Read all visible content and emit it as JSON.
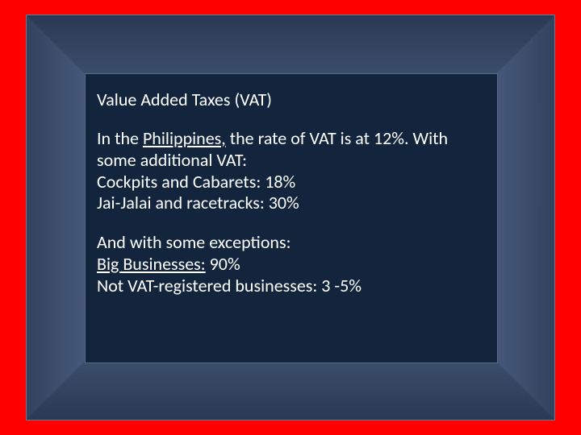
{
  "slide": {
    "background_color": "#ff0000",
    "frame": {
      "outer_border_color": "#6a7a95",
      "bevel_colors": {
        "top_gradient": [
          "#2a3a55",
          "#3a4d6a"
        ],
        "bottom_gradient": [
          "#3a4d6a",
          "#2a3a55"
        ],
        "left_gradient": [
          "#32435e",
          "#46587a"
        ],
        "right_gradient": [
          "#32435e",
          "#46587a"
        ]
      },
      "content_bg": "#12253d",
      "content_border": "#5a6a85"
    },
    "text_color": "#ffffff",
    "font_size_pt": 16,
    "title": "Value Added Taxes (VAT)",
    "body": {
      "line1_prefix": "In the ",
      "line1_underlined": "Philippines,",
      "line1_suffix": " the rate of VAT is at 12%. With some additional VAT:",
      "line2": "Cockpits and Cabarets: 18%",
      "line3": "Jai-Jalai and racetracks: 30%",
      "exceptions_intro": "And with some exceptions:",
      "exc1_underlined": "Big Businesses:",
      "exc1_suffix": " 90%",
      "exc2": "Not VAT-registered businesses: 3 -5%"
    }
  }
}
